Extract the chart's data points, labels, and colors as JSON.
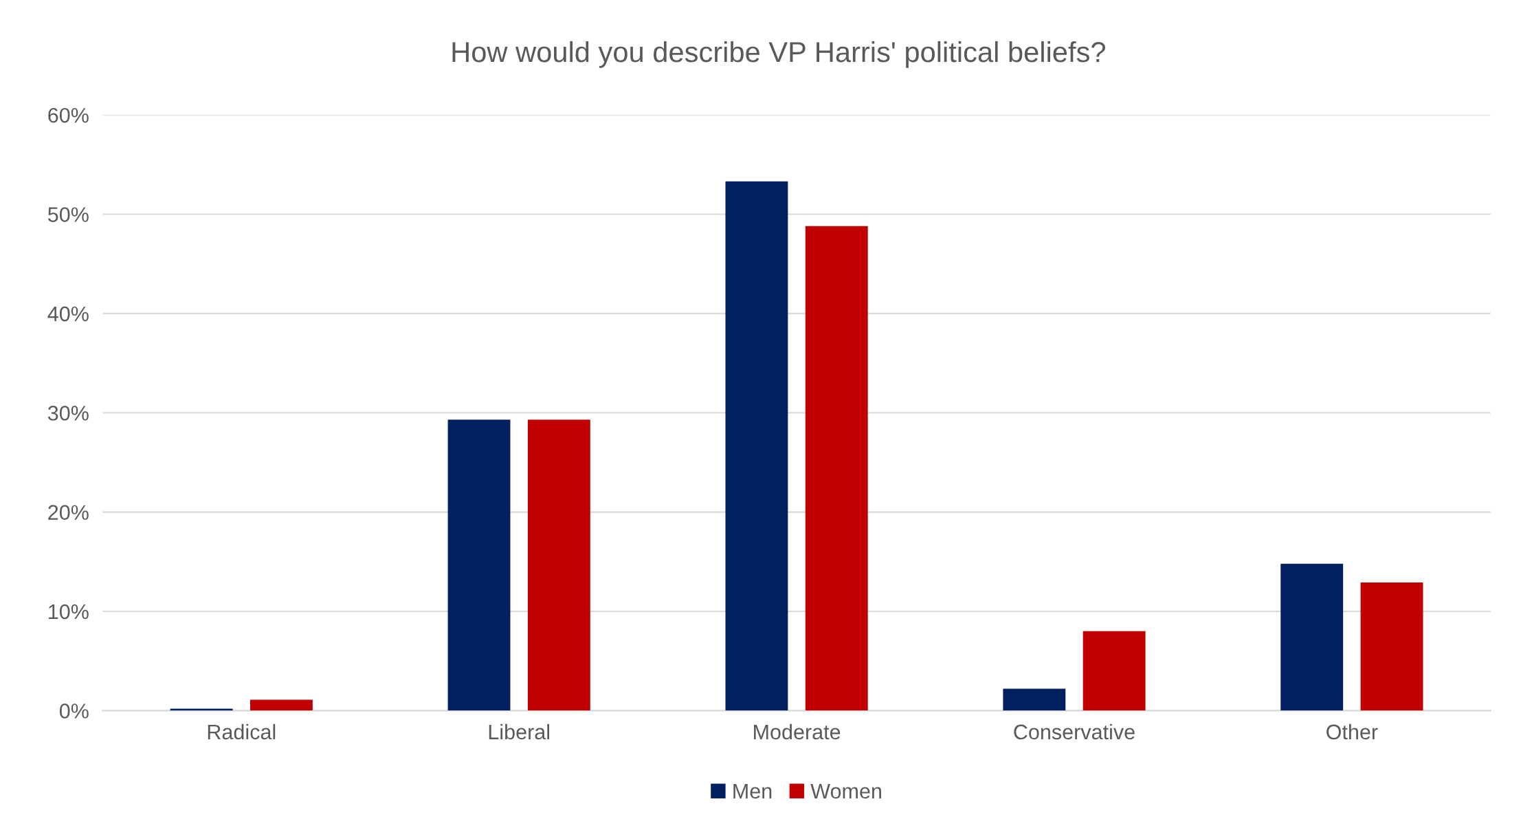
{
  "chart_data": {
    "type": "bar",
    "title": "How would you describe VP Harris' political beliefs?",
    "categories": [
      "Radical",
      "Liberal",
      "Moderate",
      "Conservative",
      "Other"
    ],
    "series": [
      {
        "name": "Men",
        "color": "#002060",
        "values": [
          0.2,
          29.3,
          53.3,
          2.2,
          14.8
        ]
      },
      {
        "name": "Women",
        "color": "#c00000",
        "values": [
          1.1,
          29.3,
          48.8,
          8.0,
          12.9
        ]
      }
    ],
    "ylim": [
      0,
      60
    ],
    "yticks": [
      {
        "value": 0,
        "label": "0%"
      },
      {
        "value": 10,
        "label": "10%"
      },
      {
        "value": 20,
        "label": "20%"
      },
      {
        "value": 30,
        "label": "30%"
      },
      {
        "value": 40,
        "label": "40%"
      },
      {
        "value": 50,
        "label": "50%"
      },
      {
        "value": 60,
        "label": "60%"
      }
    ],
    "grid": "y",
    "legend": "bottom"
  }
}
